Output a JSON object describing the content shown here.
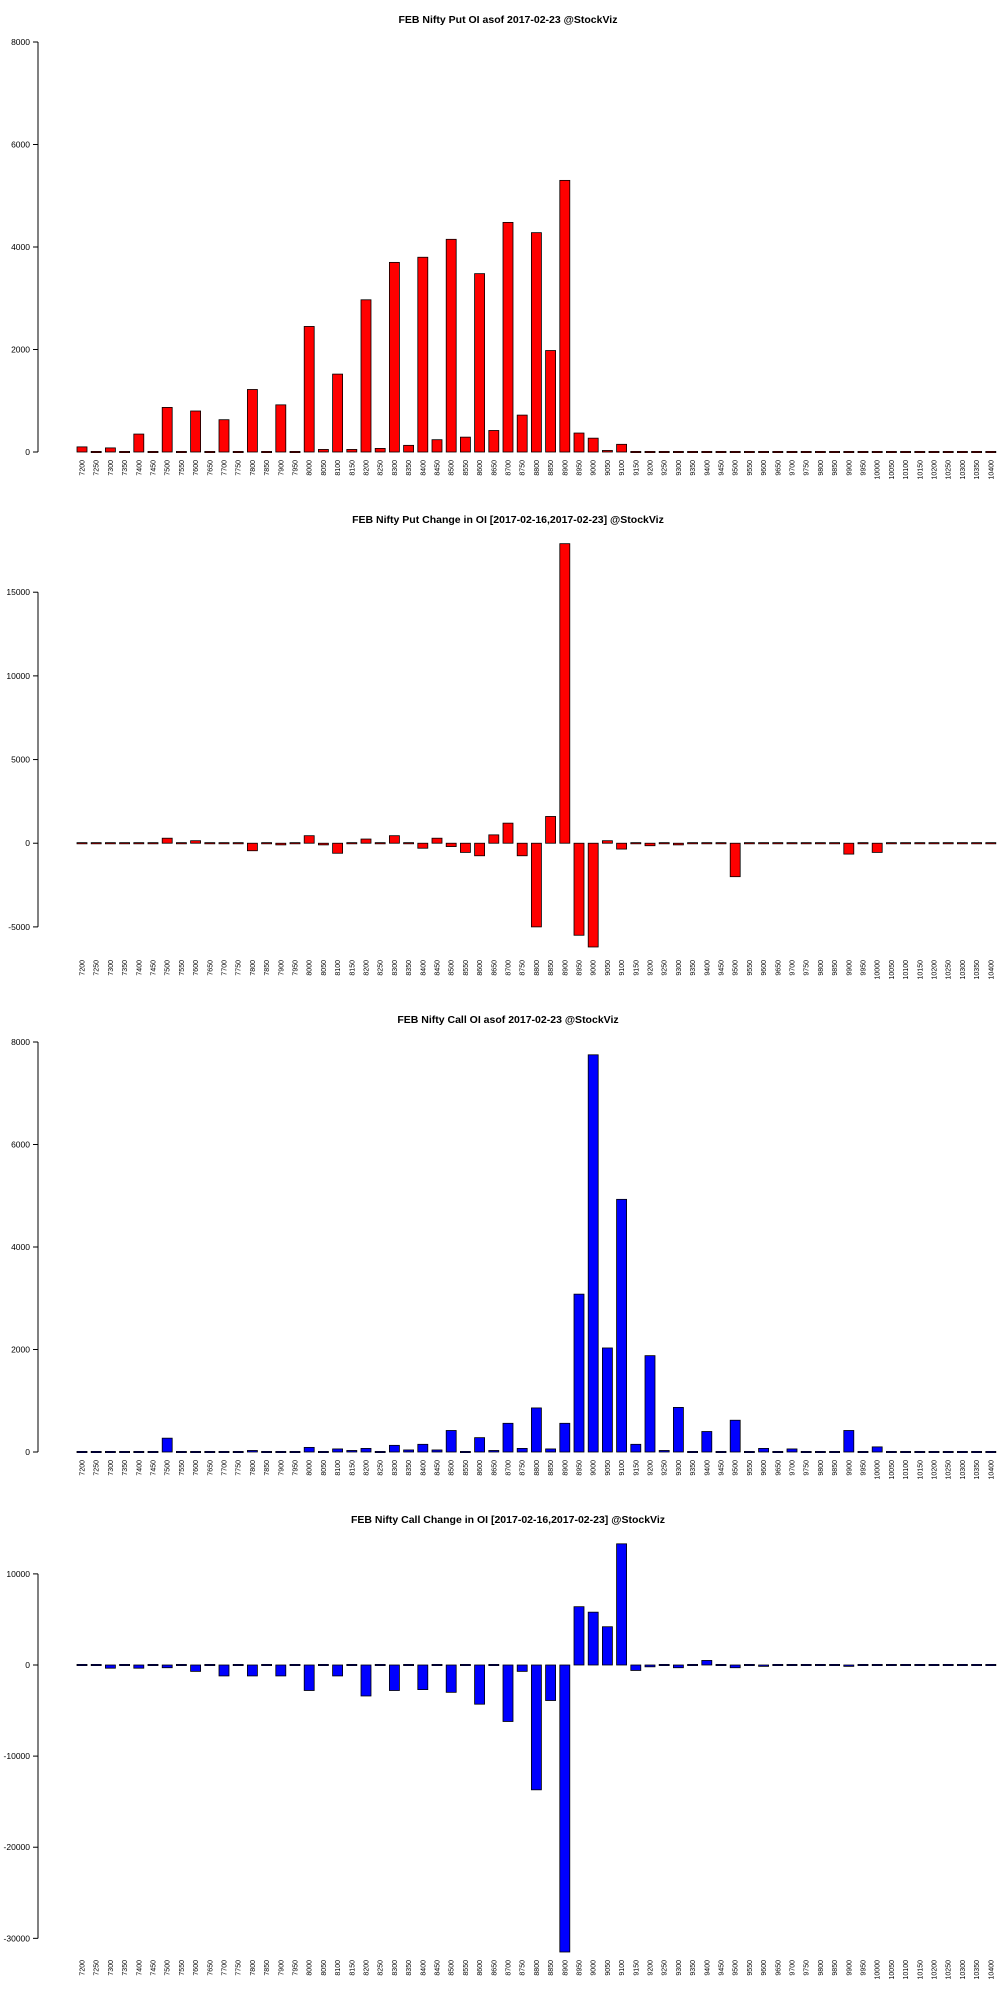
{
  "chart_data": [
    {
      "type": "bar",
      "title": "FEB Nifty Put OI asof 2017-02-23 @StockViz",
      "color": "#ff0000",
      "ylim": [
        0,
        8000
      ],
      "yticks": [
        0,
        2000,
        4000,
        6000,
        8000
      ],
      "categories": [
        "7200",
        "7250",
        "7300",
        "7350",
        "7400",
        "7450",
        "7500",
        "7550",
        "7600",
        "7650",
        "7700",
        "7750",
        "7800",
        "7850",
        "7900",
        "7950",
        "8000",
        "8050",
        "8100",
        "8150",
        "8200",
        "8250",
        "8300",
        "8350",
        "8400",
        "8450",
        "8500",
        "8550",
        "8600",
        "8650",
        "8700",
        "8750",
        "8800",
        "8850",
        "8900",
        "8950",
        "9000",
        "9050",
        "9100",
        "9150",
        "9200",
        "9250",
        "9300",
        "9350",
        "9400",
        "9450",
        "9500",
        "9550",
        "9600",
        "9650",
        "9700",
        "9750",
        "9800",
        "9850",
        "9900",
        "9950",
        "10000",
        "10050",
        "10100",
        "10150",
        "10200",
        "10250",
        "10300",
        "10350",
        "10400"
      ],
      "values": [
        100,
        0,
        80,
        0,
        350,
        0,
        870,
        0,
        800,
        0,
        630,
        0,
        1220,
        0,
        920,
        0,
        2450,
        50,
        1520,
        50,
        2970,
        70,
        3700,
        130,
        3800,
        240,
        4150,
        290,
        3480,
        420,
        4480,
        720,
        4280,
        1980,
        5300,
        370,
        270,
        30,
        150,
        0,
        20,
        0,
        0,
        0,
        0,
        0,
        0,
        0,
        0,
        0,
        0,
        0,
        0,
        0,
        0,
        0,
        0,
        0,
        0,
        0,
        0,
        0,
        0,
        0,
        0
      ]
    },
    {
      "type": "bar",
      "title": "FEB Nifty Put Change in OI [2017-02-16,2017-02-23] @StockViz",
      "color": "#ff0000",
      "ylim": [
        -6500,
        18000
      ],
      "yticks": [
        -5000,
        0,
        5000,
        10000,
        15000
      ],
      "categories": [
        "7200",
        "7250",
        "7300",
        "7350",
        "7400",
        "7450",
        "7500",
        "7550",
        "7600",
        "7650",
        "7700",
        "7750",
        "7800",
        "7850",
        "7900",
        "7950",
        "8000",
        "8050",
        "8100",
        "8150",
        "8200",
        "8250",
        "8300",
        "8350",
        "8400",
        "8450",
        "8500",
        "8550",
        "8600",
        "8650",
        "8700",
        "8750",
        "8800",
        "8850",
        "8900",
        "8950",
        "9000",
        "9050",
        "9100",
        "9150",
        "9200",
        "9250",
        "9300",
        "9350",
        "9400",
        "9450",
        "9500",
        "9550",
        "9600",
        "9650",
        "9700",
        "9750",
        "9800",
        "9850",
        "9900",
        "9950",
        "10000",
        "10050",
        "10100",
        "10150",
        "10200",
        "10250",
        "10300",
        "10350",
        "10400"
      ],
      "values": [
        0,
        0,
        0,
        0,
        0,
        0,
        300,
        0,
        150,
        0,
        50,
        0,
        -450,
        0,
        -100,
        0,
        450,
        -100,
        -600,
        0,
        250,
        0,
        450,
        50,
        -300,
        300,
        -200,
        -550,
        -750,
        500,
        1200,
        -750,
        -5000,
        1600,
        17900,
        -5500,
        -6200,
        150,
        -350,
        0,
        -150,
        0,
        -100,
        0,
        0,
        0,
        -2000,
        0,
        0,
        0,
        0,
        0,
        0,
        0,
        -650,
        0,
        -550,
        0,
        0,
        0,
        0,
        0,
        0,
        0,
        0
      ]
    },
    {
      "type": "bar",
      "title": "FEB Nifty Call OI asof 2017-02-23 @StockViz",
      "color": "#0000ff",
      "ylim": [
        0,
        8000
      ],
      "yticks": [
        0,
        2000,
        4000,
        6000,
        8000
      ],
      "categories": [
        "7200",
        "7250",
        "7300",
        "7350",
        "7400",
        "7450",
        "7500",
        "7550",
        "7600",
        "7650",
        "7700",
        "7750",
        "7800",
        "7850",
        "7900",
        "7950",
        "8000",
        "8050",
        "8100",
        "8150",
        "8200",
        "8250",
        "8300",
        "8350",
        "8400",
        "8450",
        "8500",
        "8550",
        "8600",
        "8650",
        "8700",
        "8750",
        "8800",
        "8850",
        "8900",
        "8950",
        "9000",
        "9050",
        "9100",
        "9150",
        "9200",
        "9250",
        "9300",
        "9350",
        "9400",
        "9450",
        "9500",
        "9550",
        "9600",
        "9650",
        "9700",
        "9750",
        "9800",
        "9850",
        "9900",
        "9950",
        "10000",
        "10050",
        "10100",
        "10150",
        "10200",
        "10250",
        "10300",
        "10350",
        "10400"
      ],
      "values": [
        0,
        0,
        0,
        0,
        0,
        0,
        270,
        0,
        0,
        0,
        0,
        0,
        30,
        0,
        10,
        0,
        90,
        20,
        60,
        30,
        70,
        20,
        130,
        40,
        150,
        40,
        420,
        20,
        280,
        30,
        560,
        70,
        860,
        60,
        560,
        3080,
        7750,
        2030,
        4930,
        150,
        1880,
        30,
        870,
        10,
        400,
        0,
        620,
        0,
        70,
        0,
        60,
        10,
        20,
        10,
        420,
        20,
        100,
        0,
        0,
        0,
        0,
        0,
        0,
        0,
        0
      ]
    },
    {
      "type": "bar",
      "title": "FEB Nifty Call Change in OI [2017-02-16,2017-02-23] @StockViz",
      "color": "#0000ff",
      "ylim": [
        -31500,
        13500
      ],
      "yticks": [
        -30000,
        -20000,
        -10000,
        0,
        10000
      ],
      "categories": [
        "7200",
        "7250",
        "7300",
        "7350",
        "7400",
        "7450",
        "7500",
        "7550",
        "7600",
        "7650",
        "7700",
        "7750",
        "7800",
        "7850",
        "7900",
        "7950",
        "8000",
        "8050",
        "8100",
        "8150",
        "8200",
        "8250",
        "8300",
        "8350",
        "8400",
        "8450",
        "8500",
        "8550",
        "8600",
        "8650",
        "8700",
        "8750",
        "8800",
        "8850",
        "8900",
        "8950",
        "9000",
        "9050",
        "9100",
        "9150",
        "9200",
        "9250",
        "9300",
        "9350",
        "9400",
        "9450",
        "9500",
        "9550",
        "9600",
        "9650",
        "9700",
        "9750",
        "9800",
        "9850",
        "9900",
        "9950",
        "10000",
        "10050",
        "10100",
        "10150",
        "10200",
        "10250",
        "10300",
        "10350",
        "10400"
      ],
      "values": [
        -100,
        0,
        -350,
        0,
        -350,
        -100,
        -300,
        0,
        -700,
        0,
        -1200,
        0,
        -1200,
        0,
        -1200,
        0,
        -2800,
        0,
        -1200,
        0,
        -3400,
        0,
        -2800,
        0,
        -2700,
        0,
        -3000,
        0,
        -4300,
        0,
        -6200,
        -700,
        -13700,
        -3900,
        -31500,
        6400,
        5800,
        4200,
        13300,
        -600,
        -200,
        0,
        -300,
        0,
        500,
        0,
        -300,
        0,
        -150,
        0,
        -100,
        0,
        -100,
        0,
        -150,
        0,
        100,
        0,
        0,
        0,
        0,
        0,
        0,
        0,
        0
      ]
    }
  ]
}
